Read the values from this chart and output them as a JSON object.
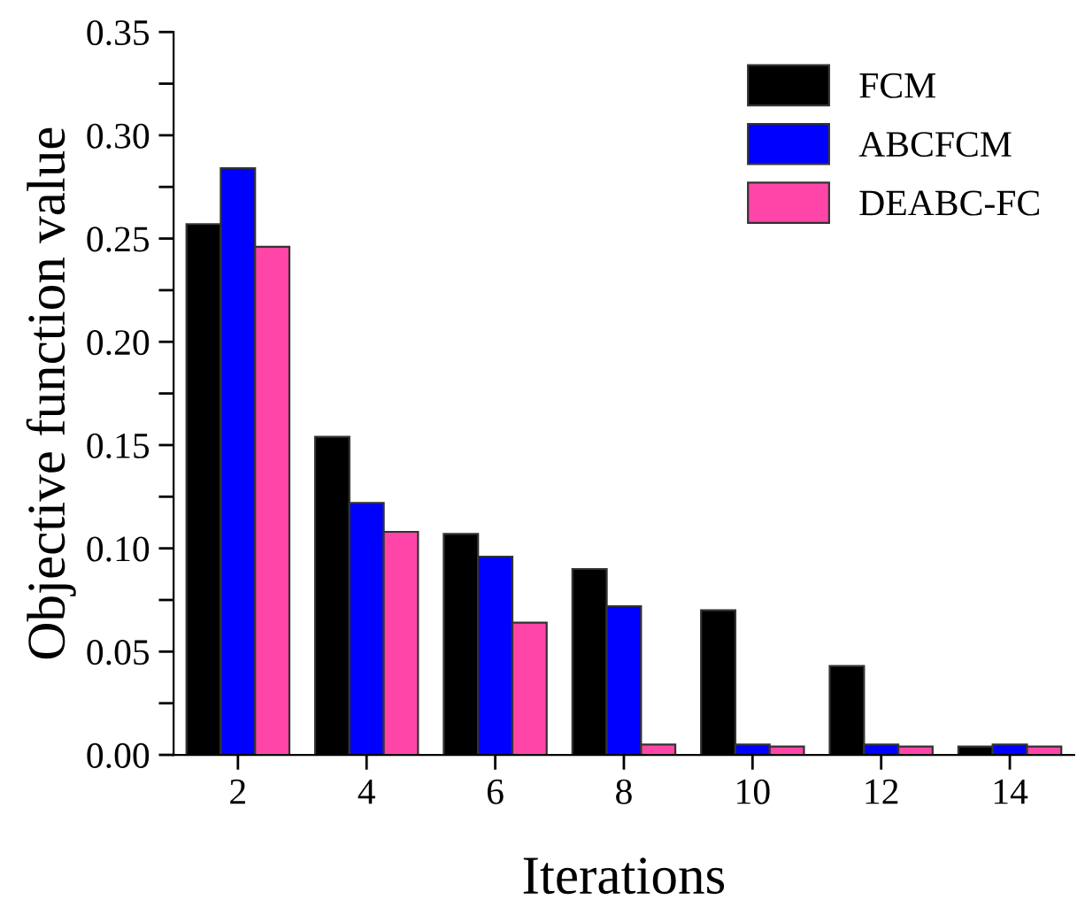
{
  "chart_data": {
    "type": "bar",
    "xlabel": "Iterations",
    "ylabel": "Objective function value",
    "categories": [
      "2",
      "4",
      "6",
      "8",
      "10",
      "12",
      "14"
    ],
    "series": [
      {
        "name": "FCM",
        "color": "#000000",
        "values": [
          0.257,
          0.154,
          0.107,
          0.09,
          0.07,
          0.043,
          0.004
        ]
      },
      {
        "name": "ABCFCM",
        "color": "#0000ff",
        "values": [
          0.284,
          0.122,
          0.096,
          0.072,
          0.005,
          0.005,
          0.005
        ]
      },
      {
        "name": "DEABC-FC",
        "color": "#ff46a8",
        "values": [
          0.246,
          0.108,
          0.064,
          0.005,
          0.004,
          0.004,
          0.004
        ]
      }
    ],
    "ylim": [
      0,
      0.35
    ],
    "yticks": [
      {
        "value": 0,
        "label": "0.00"
      },
      {
        "value": 0.025,
        "label": null
      },
      {
        "value": 0.05,
        "label": "0.05"
      },
      {
        "value": 0.075,
        "label": null
      },
      {
        "value": 0.1,
        "label": "0.10"
      },
      {
        "value": 0.125,
        "label": null
      },
      {
        "value": 0.15,
        "label": "0.15"
      },
      {
        "value": 0.175,
        "label": null
      },
      {
        "value": 0.2,
        "label": "0.20"
      },
      {
        "value": 0.225,
        "label": null
      },
      {
        "value": 0.25,
        "label": "0.25"
      },
      {
        "value": 0.275,
        "label": null
      },
      {
        "value": 0.3,
        "label": "0.30"
      },
      {
        "value": 0.325,
        "label": null
      },
      {
        "value": 0.35,
        "label": "0.35"
      }
    ],
    "grid": false,
    "legend": "top right"
  }
}
